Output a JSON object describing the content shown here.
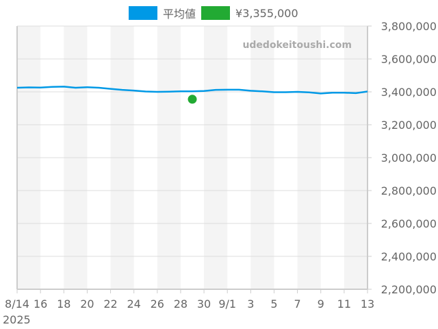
{
  "chart_data": {
    "type": "line",
    "title": "",
    "xlabel": "",
    "ylabel": "",
    "ylim": [
      2200000,
      3800000
    ],
    "yticks": [
      "2,200,000",
      "2,400,000",
      "2,600,000",
      "2,800,000",
      "3,000,000",
      "3,200,000",
      "3,400,000",
      "3,600,000",
      "3,800,000"
    ],
    "ytick_values": [
      2200000,
      2400000,
      2600000,
      2800000,
      3000000,
      3200000,
      3400000,
      3600000,
      3800000
    ],
    "xtick_labels": [
      "8/14",
      "16",
      "18",
      "20",
      "22",
      "24",
      "26",
      "28",
      "30",
      "9/1",
      "3",
      "5",
      "7",
      "9",
      "11",
      "13"
    ],
    "xtick_day_index": [
      0,
      2,
      4,
      6,
      8,
      10,
      12,
      14,
      16,
      18,
      20,
      22,
      24,
      26,
      28,
      30
    ],
    "x_year_label": "2025",
    "grid": true,
    "legend_position": "top",
    "watermark": "udedokeitoushi.com",
    "series": [
      {
        "name": "平均値",
        "color": "#0099e6",
        "type": "line",
        "x": [
          "8/14",
          "8/15",
          "8/16",
          "8/17",
          "8/18",
          "8/19",
          "8/20",
          "8/21",
          "8/22",
          "8/23",
          "8/24",
          "8/25",
          "8/26",
          "8/27",
          "8/28",
          "8/29",
          "8/30",
          "8/31",
          "9/1",
          "9/2",
          "9/3",
          "9/4",
          "9/5",
          "9/6",
          "9/7",
          "9/8",
          "9/9",
          "9/10",
          "9/11",
          "9/12",
          "9/13"
        ],
        "values": [
          3425000,
          3427000,
          3426000,
          3430000,
          3432000,
          3425000,
          3428000,
          3425000,
          3418000,
          3412000,
          3408000,
          3402000,
          3400000,
          3401000,
          3403000,
          3403000,
          3405000,
          3412000,
          3413000,
          3413000,
          3407000,
          3403000,
          3398000,
          3398000,
          3400000,
          3397000,
          3390000,
          3395000,
          3395000,
          3392000,
          3402000
        ]
      },
      {
        "name": "¥3,355,000",
        "color": "#22aa33",
        "type": "scatter",
        "x": [
          "8/29"
        ],
        "values": [
          3355000
        ]
      }
    ]
  },
  "legend": {
    "items": [
      {
        "label": "平均値",
        "color": "#0099e6"
      },
      {
        "label": "¥3,355,000",
        "color": "#22aa33"
      }
    ]
  }
}
